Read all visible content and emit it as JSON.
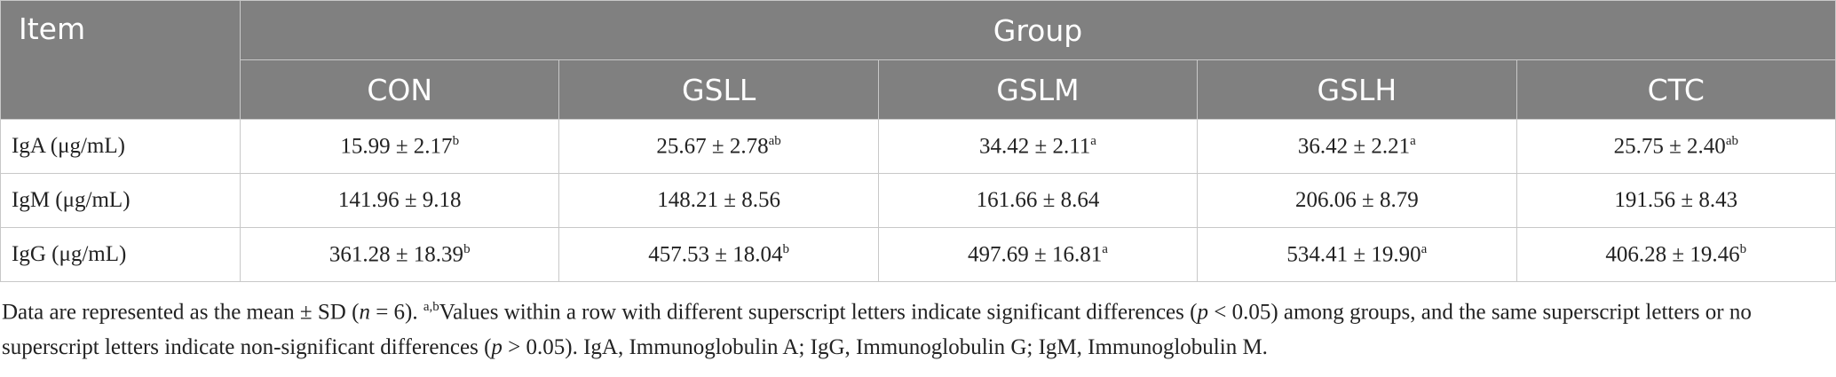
{
  "header": {
    "item": "Item",
    "group": "Group",
    "columns": [
      "CON",
      "GSLL",
      "GSLM",
      "GSLH",
      "CTC"
    ]
  },
  "rows": [
    {
      "label": "IgA (μg/mL)",
      "cells": [
        {
          "value": "15.99 ± 2.17",
          "sup": "b"
        },
        {
          "value": "25.67 ± 2.78",
          "sup": "ab"
        },
        {
          "value": "34.42 ± 2.11",
          "sup": "a"
        },
        {
          "value": "36.42 ± 2.21",
          "sup": "a"
        },
        {
          "value": "25.75 ± 2.40",
          "sup": "ab"
        }
      ]
    },
    {
      "label": "IgM (μg/mL)",
      "cells": [
        {
          "value": "141.96 ± 9.18"
        },
        {
          "value": "148.21 ± 8.56"
        },
        {
          "value": "161.66 ± 8.64"
        },
        {
          "value": "206.06 ± 8.79"
        },
        {
          "value": "191.56 ± 8.43"
        }
      ]
    },
    {
      "label": "IgG (μg/mL)",
      "cells": [
        {
          "value": "361.28 ± 18.39",
          "sup": "b"
        },
        {
          "value": "457.53 ± 18.04",
          "sup": "b"
        },
        {
          "value": "497.69 ± 16.81",
          "sup": "a"
        },
        {
          "value": "534.41 ± 19.90",
          "sup": "a"
        },
        {
          "value": "406.28 ± 19.46",
          "sup": "b"
        }
      ]
    }
  ],
  "footnote": [
    "Data are represented as the mean ± SD (",
    "n",
    " = 6). ",
    "a,b",
    "Values within a row with different superscript letters indicate significant differences (",
    "p",
    " < 0.05) among groups, and the same superscript letters or no superscript letters indicate non-significant differences (",
    "p",
    " > 0.05). IgA, Immunoglobulin A; IgG, Immunoglobulin G; IgM, Immunoglobulin M."
  ]
}
